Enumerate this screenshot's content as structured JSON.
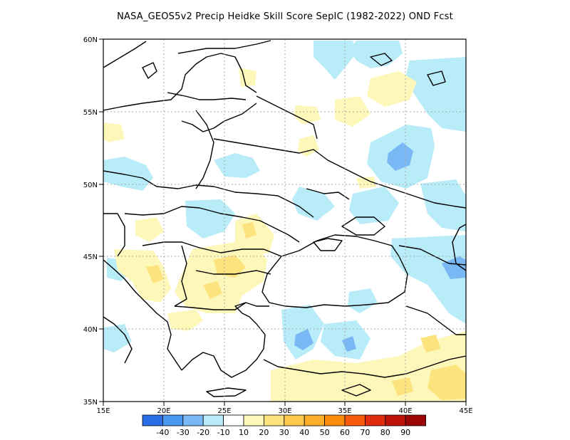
{
  "title": "NASA_GEOS5v2 Precip Heidke Skill Score SepIC (1982-2022) OND Fcst",
  "map": {
    "lon_range": [
      15,
      45
    ],
    "lat_range": [
      35,
      60
    ],
    "x_ticks": [
      "15E",
      "20E",
      "25E",
      "30E",
      "35E",
      "40E",
      "45E"
    ],
    "y_ticks": [
      "35N",
      "40N",
      "45N",
      "50N",
      "55N",
      "60N"
    ],
    "gridlines": "dotted"
  },
  "colorbar": {
    "colors": [
      "#2a6fe8",
      "#4a97f0",
      "#7ab8f5",
      "#b8ecf8",
      "#ffffff",
      "#fef7ba",
      "#fde37e",
      "#fcc94e",
      "#fdae2a",
      "#fc8d0c",
      "#f95b0c",
      "#e02c0e",
      "#bd1208",
      "#9c0506"
    ],
    "labels": [
      "-40",
      "-30",
      "-20",
      "-10",
      "10",
      "20",
      "30",
      "40",
      "50",
      "60",
      "70",
      "80",
      "90"
    ]
  }
}
